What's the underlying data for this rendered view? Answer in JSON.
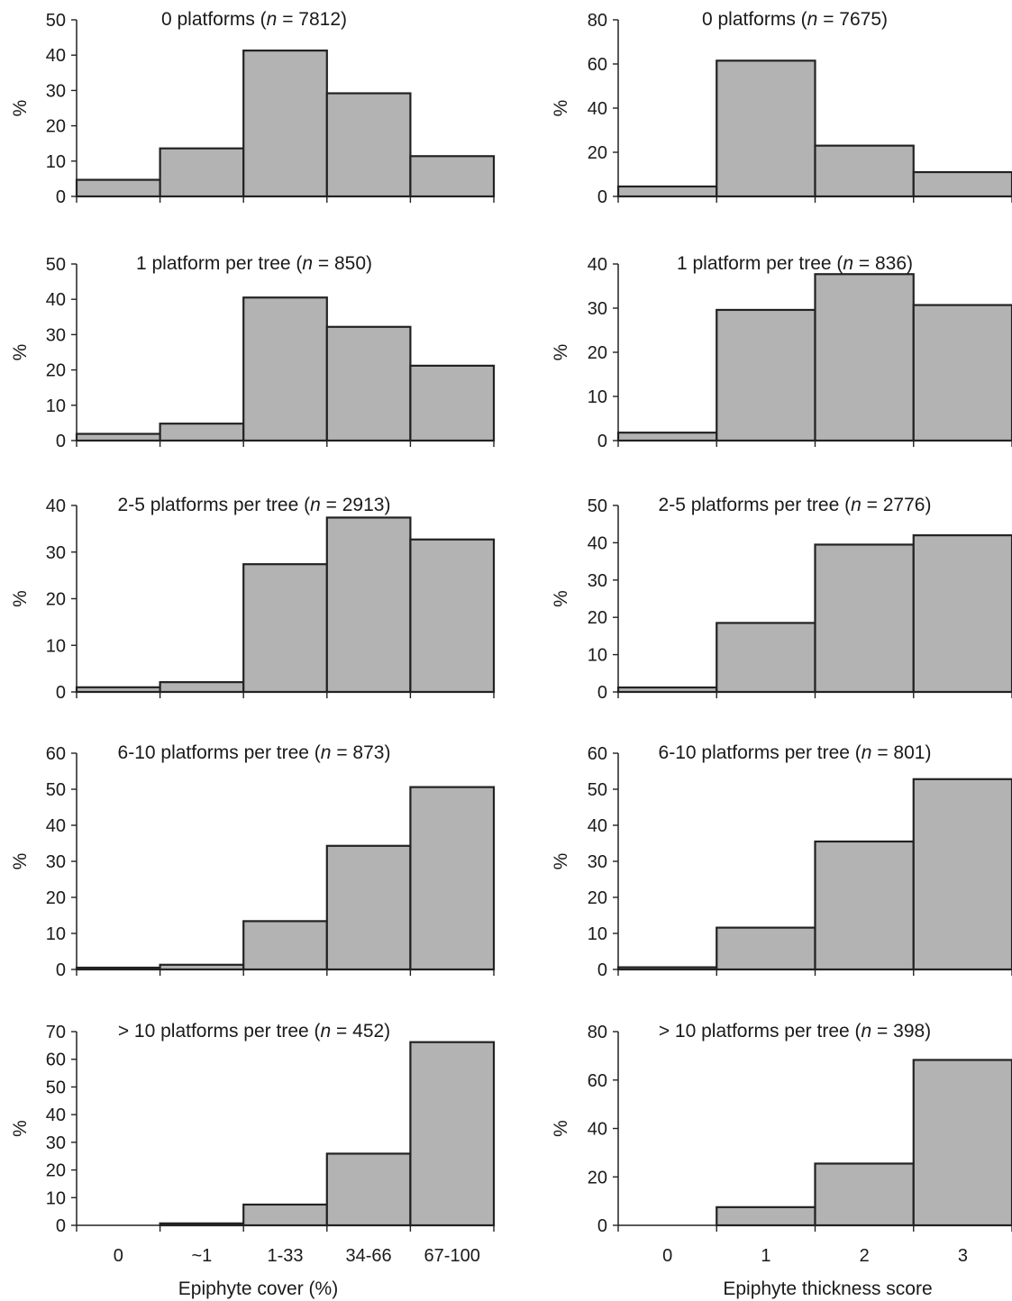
{
  "chart_data": [
    {
      "type": "bar",
      "column": "left",
      "title_parts": [
        "0 platforms (",
        "n",
        " = 7812)"
      ],
      "ylabel": "%",
      "ylim": [
        0,
        50
      ],
      "yticks": [
        0,
        10,
        20,
        30,
        40,
        50
      ],
      "categories": [
        "0",
        "~1",
        "1-33",
        "34-66",
        "67-100"
      ],
      "values": [
        4.7,
        13.6,
        41.3,
        29.2,
        11.4
      ]
    },
    {
      "type": "bar",
      "column": "right",
      "title_parts": [
        "0 platforms (",
        "n",
        " = 7675)"
      ],
      "ylabel": "%",
      "ylim": [
        0,
        80
      ],
      "yticks": [
        0,
        20,
        40,
        60,
        80
      ],
      "categories": [
        "0",
        "1",
        "2",
        "3"
      ],
      "values": [
        4.5,
        61.5,
        23.0,
        11.0
      ]
    },
    {
      "type": "bar",
      "column": "left",
      "title_parts": [
        "1 platform per tree (",
        "n",
        " = 850)"
      ],
      "ylabel": "%",
      "ylim": [
        0,
        50
      ],
      "yticks": [
        0,
        10,
        20,
        30,
        40,
        50
      ],
      "categories": [
        "0",
        "~1",
        "1-33",
        "34-66",
        "67-100"
      ],
      "values": [
        1.9,
        4.8,
        40.5,
        32.2,
        21.2
      ]
    },
    {
      "type": "bar",
      "column": "right",
      "title_parts": [
        "1 platform per tree (",
        "n",
        " = 836)"
      ],
      "ylabel": "%",
      "ylim": [
        0,
        40
      ],
      "yticks": [
        0,
        10,
        20,
        30,
        40
      ],
      "categories": [
        "0",
        "1",
        "2",
        "3"
      ],
      "values": [
        1.8,
        29.6,
        37.7,
        30.7
      ]
    },
    {
      "type": "bar",
      "column": "left",
      "title_parts": [
        "2-5 platforms per tree (",
        "n",
        " = 2913)"
      ],
      "ylabel": "%",
      "ylim": [
        0,
        40
      ],
      "yticks": [
        0,
        10,
        20,
        30,
        40
      ],
      "categories": [
        "0",
        "~1",
        "1-33",
        "34-66",
        "67-100"
      ],
      "values": [
        1.0,
        2.1,
        27.4,
        37.4,
        32.7
      ]
    },
    {
      "type": "bar",
      "column": "right",
      "title_parts": [
        "2-5 platforms per tree (",
        "n",
        " = 2776)"
      ],
      "ylabel": "%",
      "ylim": [
        0,
        50
      ],
      "yticks": [
        0,
        10,
        20,
        30,
        40,
        50
      ],
      "categories": [
        "0",
        "1",
        "2",
        "3"
      ],
      "values": [
        1.2,
        18.5,
        39.5,
        42.0
      ]
    },
    {
      "type": "bar",
      "column": "left",
      "title_parts": [
        "6-10 platforms per tree (",
        "n",
        " = 873)"
      ],
      "ylabel": "%",
      "ylim": [
        0,
        60
      ],
      "yticks": [
        0,
        10,
        20,
        30,
        40,
        50,
        60
      ],
      "categories": [
        "0",
        "~1",
        "1-33",
        "34-66",
        "67-100"
      ],
      "values": [
        0.5,
        1.3,
        13.4,
        34.3,
        50.6
      ]
    },
    {
      "type": "bar",
      "column": "right",
      "title_parts": [
        "6-10 platforms per tree (",
        "n",
        " = 801)"
      ],
      "ylabel": "%",
      "ylim": [
        0,
        60
      ],
      "yticks": [
        0,
        10,
        20,
        30,
        40,
        50,
        60
      ],
      "categories": [
        "0",
        "1",
        "2",
        "3"
      ],
      "values": [
        0.6,
        11.6,
        35.5,
        52.8
      ]
    },
    {
      "type": "bar",
      "column": "left",
      "title_parts": [
        "> 10 platforms per tree (",
        "n",
        " = 452)"
      ],
      "ylabel": "%",
      "ylim": [
        0,
        70
      ],
      "yticks": [
        0,
        10,
        20,
        30,
        40,
        50,
        60,
        70
      ],
      "categories": [
        "0",
        "~1",
        "1-33",
        "34-66",
        "67-100"
      ],
      "values": [
        0,
        0.7,
        7.5,
        25.9,
        66.2
      ],
      "xlabel": "Epiphyte cover (%)",
      "show_tick_labels": true
    },
    {
      "type": "bar",
      "column": "right",
      "title_parts": [
        "> 10 platforms per tree (",
        "n",
        " = 398)"
      ],
      "ylabel": "%",
      "ylim": [
        0,
        80
      ],
      "yticks": [
        0,
        20,
        40,
        60,
        80
      ],
      "categories": [
        "0",
        "1",
        "2",
        "3"
      ],
      "values": [
        0,
        7.5,
        25.5,
        68.3
      ],
      "xlabel": "Epiphyte thickness score",
      "show_tick_labels": true
    }
  ]
}
